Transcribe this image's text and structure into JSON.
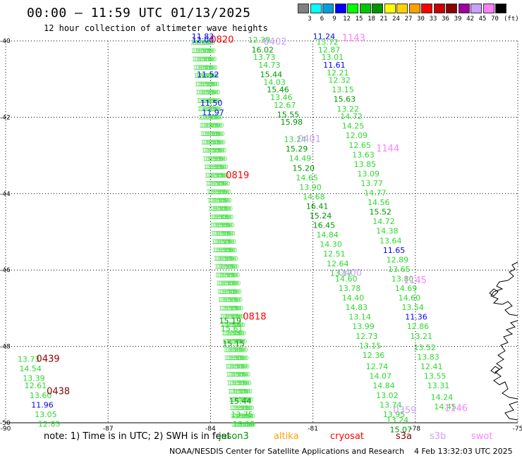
{
  "header": {
    "title": "00:00 – 11:59 UTC 01/13/2025",
    "subtitle": "12 hour collection of altimeter wave heights"
  },
  "legend": {
    "unit": "(ft)",
    "items": [
      {
        "label": "3",
        "color": "#808080"
      },
      {
        "label": "6",
        "color": "#00ffff"
      },
      {
        "label": "9",
        "color": "#00a0e0"
      },
      {
        "label": "12",
        "color": "#0000ff"
      },
      {
        "label": "15",
        "color": "#00ff00"
      },
      {
        "label": "18",
        "color": "#00c800"
      },
      {
        "label": "21",
        "color": "#009600"
      },
      {
        "label": "24",
        "color": "#ffff00"
      },
      {
        "label": "27",
        "color": "#ffd200"
      },
      {
        "label": "30",
        "color": "#ffa000"
      },
      {
        "label": "33",
        "color": "#ff0000"
      },
      {
        "label": "36",
        "color": "#c80000"
      },
      {
        "label": "39",
        "color": "#8b0000"
      },
      {
        "label": "42",
        "color": "#a000a0"
      },
      {
        "label": "45",
        "color": "#c8a0ff"
      },
      {
        "label": "70",
        "color": "#ff80ff"
      },
      {
        "label": "",
        "color": "#000000"
      }
    ]
  },
  "axes": {
    "lat_labels": [
      "-40",
      "-42",
      "-44",
      "-46",
      "-48",
      "-50"
    ],
    "lon_labels": [
      "-90",
      "-87",
      "-84",
      "-81",
      "-78",
      "-75"
    ],
    "lat_range": [
      -50,
      -40
    ],
    "lon_range": [
      -90,
      -75
    ]
  },
  "times": [
    {
      "text": "0820",
      "lon": -84.0,
      "lat": -40.05,
      "color": "#ff0000"
    },
    {
      "text": "0819",
      "lon": -83.55,
      "lat": -43.6,
      "color": "#ff0000"
    },
    {
      "text": "0818",
      "lon": -83.05,
      "lat": -47.3,
      "color": "#ff0000"
    },
    {
      "text": "0402",
      "lon": -82.45,
      "lat": -40.1,
      "color": "#c8a0ff"
    },
    {
      "text": "0401",
      "lon": -81.45,
      "lat": -42.65,
      "color": "#c8a0ff"
    },
    {
      "text": "0400",
      "lon": -80.25,
      "lat": -46.15,
      "color": "#c8a0ff"
    },
    {
      "text": "0359",
      "lon": -78.65,
      "lat": -49.75,
      "color": "#c8a0ff"
    },
    {
      "text": "1143",
      "lon": -80.15,
      "lat": -40.0,
      "color": "#ff80ff"
    },
    {
      "text": "1144",
      "lon": -79.15,
      "lat": -42.9,
      "color": "#ff80ff"
    },
    {
      "text": "1145",
      "lon": -78.35,
      "lat": -46.35,
      "color": "#ff80ff"
    },
    {
      "text": "1146",
      "lon": -77.15,
      "lat": -49.7,
      "color": "#ff80ff"
    },
    {
      "text": "0439",
      "lon": -89.1,
      "lat": -48.4,
      "color": "#8b0000"
    },
    {
      "text": "0438",
      "lon": -88.8,
      "lat": -49.25,
      "color": "#8b0000"
    }
  ],
  "tracks": [
    {
      "name": "pass-0402",
      "color": "#2dd82d",
      "points": [
        {
          "v": "12.39",
          "lon": -82.9,
          "lat": -40.05
        },
        {
          "v": "16.02",
          "lon": -82.8,
          "lat": -40.3,
          "c": "#009600"
        },
        {
          "v": "13.73",
          "lon": -82.75,
          "lat": -40.5
        },
        {
          "v": "14.73",
          "lon": -82.6,
          "lat": -40.7
        },
        {
          "v": "15.44",
          "lon": -82.55,
          "lat": -40.95,
          "c": "#009600"
        },
        {
          "v": "14.03",
          "lon": -82.45,
          "lat": -41.15
        },
        {
          "v": "15.46",
          "lon": -82.35,
          "lat": -41.35,
          "c": "#009600"
        },
        {
          "v": "13.46",
          "lon": -82.25,
          "lat": -41.55
        },
        {
          "v": "12.67",
          "lon": -82.15,
          "lat": -41.75
        },
        {
          "v": "15.55",
          "lon": -82.05,
          "lat": -42.0,
          "c": "#009600"
        },
        {
          "v": "15.98",
          "lon": -81.95,
          "lat": -42.2,
          "c": "#009600"
        },
        {
          "v": "13.24",
          "lon": -81.85,
          "lat": -42.65
        },
        {
          "v": "15.29",
          "lon": -81.8,
          "lat": -42.9,
          "c": "#009600"
        },
        {
          "v": "14.49",
          "lon": -81.7,
          "lat": -43.15
        },
        {
          "v": "15.20",
          "lon": -81.6,
          "lat": -43.4,
          "c": "#009600"
        },
        {
          "v": "14.65",
          "lon": -81.5,
          "lat": -43.65
        },
        {
          "v": "13.90",
          "lon": -81.4,
          "lat": -43.9
        },
        {
          "v": "14.68",
          "lon": -81.3,
          "lat": -44.15
        },
        {
          "v": "16.41",
          "lon": -81.2,
          "lat": -44.4,
          "c": "#009600"
        },
        {
          "v": "15.24",
          "lon": -81.1,
          "lat": -44.65,
          "c": "#009600"
        },
        {
          "v": "16.45",
          "lon": -81.0,
          "lat": -44.9,
          "c": "#009600"
        },
        {
          "v": "14.84",
          "lon": -80.9,
          "lat": -45.15
        },
        {
          "v": "14.30",
          "lon": -80.8,
          "lat": -45.4
        },
        {
          "v": "12.51",
          "lon": -80.7,
          "lat": -45.65
        },
        {
          "v": "12.64",
          "lon": -80.6,
          "lat": -45.9
        },
        {
          "v": "13.17",
          "lon": -80.5,
          "lat": -46.15
        }
      ]
    },
    {
      "name": "pass-0359",
      "color": "#2dd82d",
      "points": [
        {
          "v": "14.60",
          "lon": -80.35,
          "lat": -46.3
        },
        {
          "v": "13.78",
          "lon": -80.25,
          "lat": -46.55
        },
        {
          "v": "14.40",
          "lon": -80.15,
          "lat": -46.8
        },
        {
          "v": "14.83",
          "lon": -80.05,
          "lat": -47.05
        },
        {
          "v": "13.14",
          "lon": -79.95,
          "lat": -47.3
        },
        {
          "v": "13.99",
          "lon": -79.85,
          "lat": -47.55
        },
        {
          "v": "12.73",
          "lon": -79.75,
          "lat": -47.8
        },
        {
          "v": "13.15",
          "lon": -79.65,
          "lat": -48.05
        },
        {
          "v": "12.36",
          "lon": -79.55,
          "lat": -48.3
        },
        {
          "v": "12.74",
          "lon": -79.45,
          "lat": -48.6
        },
        {
          "v": "14.07",
          "lon": -79.35,
          "lat": -48.85
        },
        {
          "v": "14.84",
          "lon": -79.25,
          "lat": -49.1
        },
        {
          "v": "13.02",
          "lon": -79.15,
          "lat": -49.35
        },
        {
          "v": "13.74",
          "lon": -79.05,
          "lat": -49.6
        },
        {
          "v": "13.95",
          "lon": -78.95,
          "lat": -49.85
        },
        {
          "v": "13.24",
          "lon": -78.85,
          "lat": -50.0
        },
        {
          "v": "15.07",
          "lon": -78.75,
          "lat": -50.25,
          "c": "#009600"
        }
      ]
    },
    {
      "name": "pass-1143",
      "color": "#2dd82d",
      "points": [
        {
          "v": "11.24",
          "lon": -81.0,
          "lat": -39.95,
          "c": "#0000ff"
        },
        {
          "v": "13.72",
          "lon": -80.9,
          "lat": -40.1
        },
        {
          "v": "12.87",
          "lon": -80.85,
          "lat": -40.3
        },
        {
          "v": "13.01",
          "lon": -80.75,
          "lat": -40.5
        },
        {
          "v": "11.61",
          "lon": -80.7,
          "lat": -40.7,
          "c": "#0000ff"
        },
        {
          "v": "12.21",
          "lon": -80.6,
          "lat": -40.9
        },
        {
          "v": "12.32",
          "lon": -80.55,
          "lat": -41.1
        },
        {
          "v": "13.15",
          "lon": -80.45,
          "lat": -41.35
        },
        {
          "v": "15.63",
          "lon": -80.4,
          "lat": -41.6,
          "c": "#009600"
        },
        {
          "v": "13.22",
          "lon": -80.3,
          "lat": -41.85
        },
        {
          "v": "14.72",
          "lon": -80.2,
          "lat": -42.05
        },
        {
          "v": "14.25",
          "lon": -80.15,
          "lat": -42.3
        },
        {
          "v": "12.09",
          "lon": -80.05,
          "lat": -42.55
        },
        {
          "v": "12.65",
          "lon": -79.95,
          "lat": -42.8
        },
        {
          "v": "13.63",
          "lon": -79.85,
          "lat": -43.05
        },
        {
          "v": "13.85",
          "lon": -79.8,
          "lat": -43.3
        },
        {
          "v": "13.09",
          "lon": -79.7,
          "lat": -43.55
        },
        {
          "v": "13.77",
          "lon": -79.6,
          "lat": -43.8
        },
        {
          "v": "14.77",
          "lon": -79.5,
          "lat": -44.05
        },
        {
          "v": "14.56",
          "lon": -79.4,
          "lat": -44.3
        },
        {
          "v": "15.52",
          "lon": -79.35,
          "lat": -44.55,
          "c": "#009600"
        },
        {
          "v": "14.72",
          "lon": -79.25,
          "lat": -44.8
        },
        {
          "v": "14.38",
          "lon": -79.15,
          "lat": -45.05
        },
        {
          "v": "13.64",
          "lon": -79.05,
          "lat": -45.3
        },
        {
          "v": "11.65",
          "lon": -78.95,
          "lat": -45.55,
          "c": "#0000ff"
        },
        {
          "v": "12.89",
          "lon": -78.85,
          "lat": -45.8
        }
      ]
    },
    {
      "name": "pass-1146",
      "color": "#2dd82d",
      "points": [
        {
          "v": "13.65",
          "lon": -78.8,
          "lat": -46.05
        },
        {
          "v": "13.80",
          "lon": -78.7,
          "lat": -46.3
        },
        {
          "v": "14.69",
          "lon": -78.6,
          "lat": -46.55
        },
        {
          "v": "14.60",
          "lon": -78.5,
          "lat": -46.8
        },
        {
          "v": "13.54",
          "lon": -78.4,
          "lat": -47.05
        },
        {
          "v": "11.36",
          "lon": -78.3,
          "lat": -47.3,
          "c": "#0000ff"
        },
        {
          "v": "12.86",
          "lon": -78.25,
          "lat": -47.55
        },
        {
          "v": "13.21",
          "lon": -78.15,
          "lat": -47.8
        },
        {
          "v": "13.52",
          "lon": -78.05,
          "lat": -48.1
        },
        {
          "v": "13.83",
          "lon": -77.95,
          "lat": -48.35
        },
        {
          "v": "12.41",
          "lon": -77.85,
          "lat": -48.6
        },
        {
          "v": "13.55",
          "lon": -77.75,
          "lat": -48.85
        },
        {
          "v": "13.31",
          "lon": -77.65,
          "lat": -49.1
        },
        {
          "v": "14.24",
          "lon": -77.55,
          "lat": -49.4
        },
        {
          "v": "14.45",
          "lon": -77.45,
          "lat": -49.65
        }
      ]
    },
    {
      "name": "pass-0820-labels",
      "color": "#2dd82d",
      "points": [
        {
          "v": "11.83",
          "lon": -84.55,
          "lat": -39.95,
          "c": "#0000ff"
        },
        {
          "v": "12.00",
          "lon": -84.55,
          "lat": -40.05,
          "c": "#0000ff"
        },
        {
          "v": "11.52",
          "lon": -84.4,
          "lat": -40.95,
          "c": "#0000ff"
        },
        {
          "v": "11.50",
          "lon": -84.3,
          "lat": -41.7,
          "c": "#0000ff"
        },
        {
          "v": "11.97",
          "lon": -84.25,
          "lat": -41.95,
          "c": "#0000ff"
        },
        {
          "v": "15.19",
          "lon": -83.75,
          "lat": -47.4,
          "c": "#009600"
        },
        {
          "v": "15.61",
          "lon": -83.7,
          "lat": -47.6
        },
        {
          "v": "15.15",
          "lon": -83.65,
          "lat": -48.0,
          "c": "#009600"
        },
        {
          "v": "15.44",
          "lon": -83.45,
          "lat": -49.5,
          "c": "#009600"
        },
        {
          "v": "13.75",
          "lon": -83.4,
          "lat": -49.85
        },
        {
          "v": "13.19",
          "lon": -83.35,
          "lat": -50.1
        }
      ]
    },
    {
      "name": "pass-0438",
      "color": "#2dd82d",
      "points": [
        {
          "v": "13.73",
          "lon": -89.65,
          "lat": -48.4
        },
        {
          "v": "14.54",
          "lon": -89.6,
          "lat": -48.65
        },
        {
          "v": "13.39",
          "lon": -89.5,
          "lat": -48.9
        },
        {
          "v": "12.61",
          "lon": -89.45,
          "lat": -49.1
        },
        {
          "v": "13.60",
          "lon": -89.3,
          "lat": -49.35
        },
        {
          "v": "11.96",
          "lon": -89.25,
          "lat": -49.6,
          "c": "#0000ff"
        },
        {
          "v": "13.05",
          "lon": -89.15,
          "lat": -49.85
        },
        {
          "v": "12.85",
          "lon": -89.05,
          "lat": -50.1
        }
      ]
    }
  ],
  "dense_track": {
    "color": "#44dd44",
    "value": "13.50",
    "columns": 5,
    "start_lon": -84.6,
    "start_lat": -40.1,
    "end_lon": -83.4,
    "end_lat": -50.1
  },
  "footer": {
    "note": "note:  1) Time is in UTC;  2) SWH is in feet",
    "satellites": [
      {
        "name": "jason3",
        "color": "#009600"
      },
      {
        "name": "altika",
        "color": "#ffa000"
      },
      {
        "name": "cryosat",
        "color": "#ff0000"
      },
      {
        "name": "s3a",
        "color": "#8b0000"
      },
      {
        "name": "s3b",
        "color": "#c8a0ff"
      },
      {
        "name": "swot",
        "color": "#ff80ff"
      }
    ],
    "credit": "NOAA/NESDIS Center for Satellite Applications and Research",
    "timestamp": "4 Feb 13:32:03 UTC 2025"
  }
}
